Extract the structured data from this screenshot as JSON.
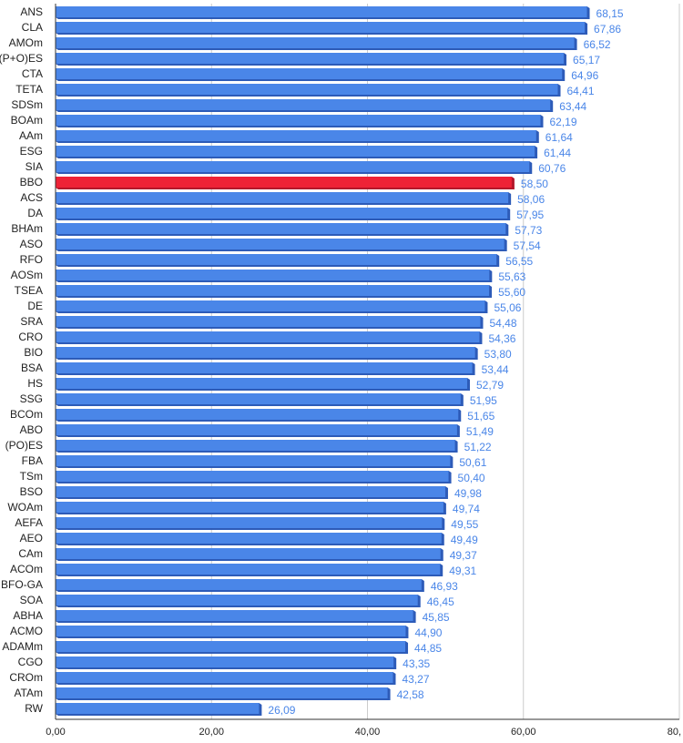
{
  "chart_data": {
    "type": "bar",
    "orientation": "horizontal",
    "title": "",
    "xlabel": "",
    "ylabel": "",
    "xlim": [
      0,
      80
    ],
    "x_ticks": [
      0,
      20,
      40,
      60,
      80
    ],
    "x_tick_labels": [
      "0,00",
      "20,00",
      "40,00",
      "60,00",
      "80,"
    ],
    "grid": "vertical",
    "legend": "none",
    "bar_color": "#4a86e8",
    "bar_shade_color": "#2d5bb8",
    "highlight_color": "#ee2236",
    "highlight_category": "BBO",
    "label_color": "#4a86e8",
    "categories": [
      "ANS",
      "CLA",
      "AMOm",
      "(P+O)ES",
      "CTA",
      "TETA",
      "SDSm",
      "BOAm",
      "AAm",
      "ESG",
      "SIA",
      "BBO",
      "ACS",
      "DA",
      "BHAm",
      "ASO",
      "RFO",
      "AOSm",
      "TSEA",
      "DE",
      "SRA",
      "CRO",
      "BIO",
      "BSA",
      "HS",
      "SSG",
      "BCOm",
      "ABO",
      "(PO)ES",
      "FBA",
      "TSm",
      "BSO",
      "WOAm",
      "AEFA",
      "AEO",
      "CAm",
      "ACOm",
      "BFO-GA",
      "SOA",
      "ABHA",
      "ACMO",
      "ADAMm",
      "CGO",
      "CROm",
      "ATAm",
      "RW"
    ],
    "values": [
      68.15,
      67.86,
      66.52,
      65.17,
      64.96,
      64.41,
      63.44,
      62.19,
      61.64,
      61.44,
      60.76,
      58.5,
      58.06,
      57.95,
      57.73,
      57.54,
      56.55,
      55.63,
      55.6,
      55.06,
      54.48,
      54.36,
      53.8,
      53.44,
      52.79,
      51.95,
      51.65,
      51.49,
      51.22,
      50.61,
      50.4,
      49.98,
      49.74,
      49.55,
      49.49,
      49.37,
      49.31,
      46.93,
      46.45,
      45.85,
      44.9,
      44.85,
      43.35,
      43.27,
      42.58,
      26.09
    ],
    "value_labels": [
      "68,15",
      "67,86",
      "66,52",
      "65,17",
      "64,96",
      "64,41",
      "63,44",
      "62,19",
      "61,64",
      "61,44",
      "60,76",
      "58,50",
      "58,06",
      "57,95",
      "57,73",
      "57,54",
      "56,55",
      "55,63",
      "55,60",
      "55,06",
      "54,48",
      "54,36",
      "53,80",
      "53,44",
      "52,79",
      "51,95",
      "51,65",
      "51,49",
      "51,22",
      "50,61",
      "50,40",
      "49,98",
      "49,74",
      "49,55",
      "49,49",
      "49,37",
      "49,31",
      "46,93",
      "46,45",
      "45,85",
      "44,90",
      "44,85",
      "43,35",
      "43,27",
      "42,58",
      "26,09"
    ]
  }
}
